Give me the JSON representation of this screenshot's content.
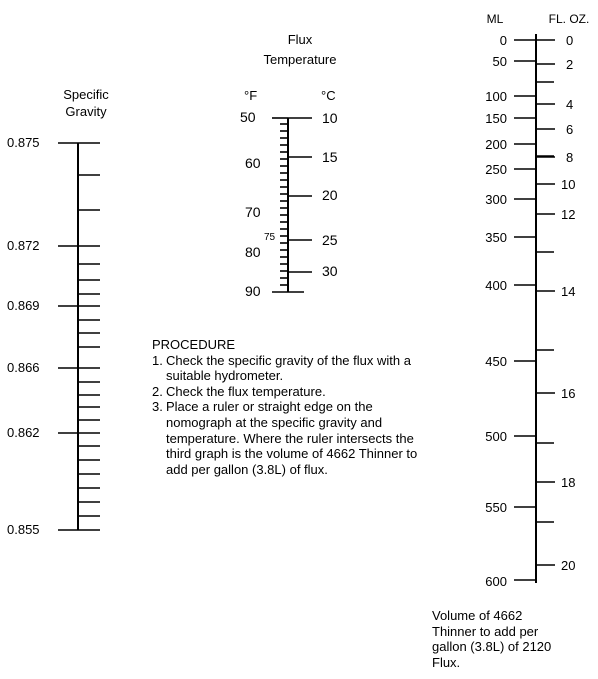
{
  "specific_gravity": {
    "title_line1": "Specific",
    "title_line2": "Gravity",
    "labels": [
      "0.875",
      "0.872",
      "0.869",
      "0.866",
      "0.862",
      "0.855"
    ]
  },
  "temperature": {
    "title_line1": "Flux",
    "title_line2": "Temperature",
    "f_unit": "°F",
    "c_unit": "°C",
    "f_labels": [
      "50",
      "60",
      "70",
      "75",
      "80",
      "90"
    ],
    "c_labels": [
      "10",
      "15",
      "20",
      "25",
      "30"
    ]
  },
  "volume": {
    "ml_unit": "ML",
    "floz_unit": "FL. OZ.",
    "ml_labels": [
      "0",
      "50",
      "100",
      "150",
      "200",
      "250",
      "300",
      "350",
      "400",
      "450",
      "500",
      "550",
      "600"
    ],
    "floz_labels": [
      "0",
      "2",
      "4",
      "6",
      "8",
      "10",
      "12",
      "14",
      "16",
      "18",
      "20"
    ],
    "caption_line1": "Volume of 4662",
    "caption_line2": "Thinner to add per",
    "caption_line3": "gallon (3.8L) of 2120",
    "caption_line4": "Flux."
  },
  "procedure": {
    "heading": "PROCEDURE",
    "step1_num": "1.",
    "step1": "Check the specific gravity of the flux with a suitable hydrometer.",
    "step2_num": "2.",
    "step2": "Check the flux temperature.",
    "step3_num": "3.",
    "step3": "Place a ruler or straight edge on the nomograph at the specific gravity and temperature.  Where the ruler intersects the third graph is the volume of 4662 Thinner to add per gallon (3.8L) of flux."
  }
}
